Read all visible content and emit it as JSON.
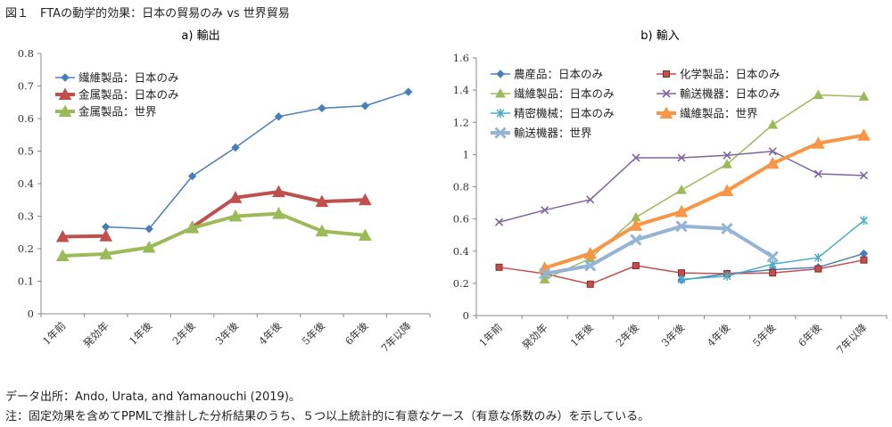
{
  "figure_title": "図１　FTAの動学的効果：日本の貿易のみ vs 世界貿易",
  "notes": {
    "source": "データ出所：Ando, Urata, and Yamanouchi (2019)。",
    "note": "注：固定効果を含めてPPMLで推計した分析結果のうち、５つ以上統計的に有意なケース（有意な係数のみ）を示している。"
  },
  "chart_data": [
    {
      "type": "line",
      "title": "a) 輸出",
      "categories": [
        "1年前",
        "発効年",
        "1年後",
        "2年後",
        "3年後",
        "4年後",
        "5年後",
        "6年後",
        "7年以降"
      ],
      "ylim": [
        0,
        0.8
      ],
      "yticks": [
        "0",
        "0.1",
        "0.2",
        "0.3",
        "0.4",
        "0.5",
        "0.6",
        "0.7",
        "0.8"
      ],
      "grid": false,
      "legend_position": "top-left",
      "series": [
        {
          "name": "繊維製品：日本のみ",
          "color": "#4a7ebb",
          "width": 1.5,
          "marker": "diamond",
          "values": [
            null,
            0.267,
            0.261,
            0.423,
            0.511,
            0.606,
            0.632,
            0.639,
            0.682
          ]
        },
        {
          "name": "金属製品：日本のみ",
          "color": "#c0504d",
          "width": 4,
          "marker": "triangle",
          "values": [
            0.237,
            0.239,
            null,
            0.266,
            0.357,
            0.375,
            0.345,
            0.35,
            null
          ]
        },
        {
          "name": "金属製品：世界",
          "color": "#9bbb59",
          "width": 4,
          "marker": "triangle",
          "values": [
            0.178,
            0.184,
            0.204,
            0.264,
            0.3,
            0.308,
            0.254,
            0.241,
            null
          ]
        }
      ]
    },
    {
      "type": "line",
      "title": "b) 輸入",
      "categories": [
        "1年前",
        "発効年",
        "1年後",
        "2年後",
        "3年後",
        "4年後",
        "5年後",
        "6年後",
        "7年以降"
      ],
      "ylim": [
        0,
        1.6
      ],
      "yticks": [
        "0",
        "0.2",
        "0.4",
        "0.6",
        "0.8",
        "1",
        "1.2",
        "1.4",
        "1.6"
      ],
      "grid": false,
      "legend_position": "top-left",
      "series": [
        {
          "name": "農産品：日本のみ",
          "color": "#4a7ebb",
          "width": 1.5,
          "marker": "diamond",
          "values": [
            null,
            null,
            null,
            null,
            0.22,
            0.26,
            0.285,
            0.3,
            0.385
          ]
        },
        {
          "name": "化学製品：日本のみ",
          "color": "#c0504d",
          "width": 1.5,
          "marker": "square",
          "values": [
            0.3,
            0.26,
            0.195,
            0.31,
            0.265,
            0.26,
            0.265,
            0.29,
            0.345
          ]
        },
        {
          "name": "繊維製品：日本のみ",
          "color": "#9bbb59",
          "width": 1.5,
          "marker": "triangle",
          "values": [
            null,
            0.225,
            0.355,
            0.61,
            0.78,
            0.94,
            1.185,
            1.37,
            1.36
          ]
        },
        {
          "name": "輸送機器：日本のみ",
          "color": "#8064a2",
          "width": 1.5,
          "marker": "x",
          "values": [
            0.58,
            0.655,
            0.72,
            0.98,
            0.98,
            0.995,
            1.02,
            0.88,
            0.87
          ]
        },
        {
          "name": "精密機械：日本のみ",
          "color": "#4bacc6",
          "width": 1.5,
          "marker": "star",
          "values": [
            null,
            null,
            null,
            null,
            0.225,
            0.245,
            0.32,
            0.36,
            0.59
          ]
        },
        {
          "name": "繊維製品：世界",
          "color": "#f79646",
          "width": 4,
          "marker": "triangle",
          "values": [
            null,
            0.295,
            0.385,
            0.56,
            0.645,
            0.775,
            0.945,
            1.07,
            1.12
          ]
        },
        {
          "name": "輸送機器：世界",
          "color": "#95b3d7",
          "width": 4,
          "marker": "x",
          "values": [
            null,
            0.26,
            0.31,
            0.47,
            0.555,
            0.54,
            0.365,
            null,
            null
          ]
        }
      ]
    }
  ]
}
